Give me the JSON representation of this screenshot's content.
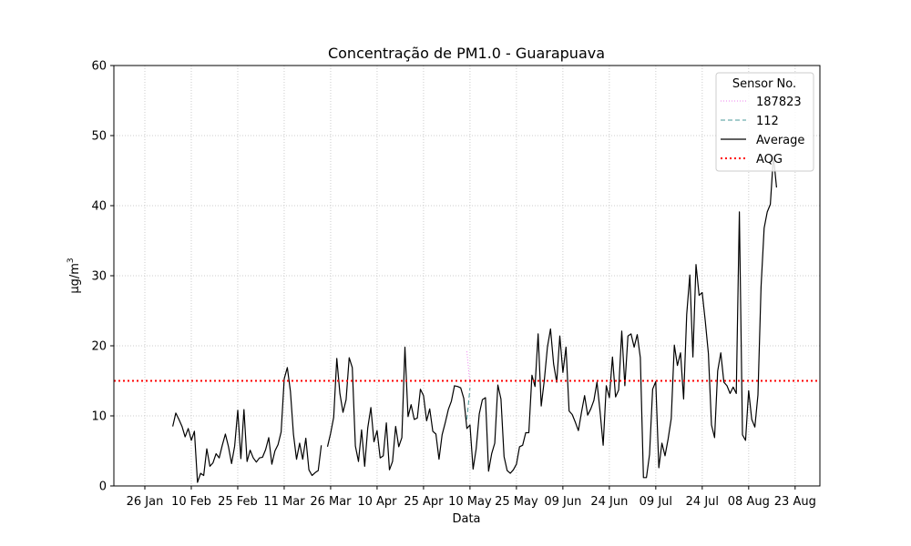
{
  "chart_data": {
    "type": "line",
    "title": "Concentração de PM1.0 - Guarapuava",
    "xlabel": "Data",
    "ylabel": "μg/m",
    "ylabel_sup": "3",
    "ylim": [
      0,
      60
    ],
    "yticks": [
      0,
      10,
      20,
      30,
      40,
      50,
      60
    ],
    "xlim": [
      "2024-01-16",
      "2024-08-31"
    ],
    "xticks": [
      {
        "date": "2024-01-26",
        "label": "26 Jan"
      },
      {
        "date": "2024-02-10",
        "label": "10 Feb"
      },
      {
        "date": "2024-02-25",
        "label": "25 Feb"
      },
      {
        "date": "2024-03-11",
        "label": "11 Mar"
      },
      {
        "date": "2024-03-26",
        "label": "26 Mar"
      },
      {
        "date": "2024-04-10",
        "label": "10 Apr"
      },
      {
        "date": "2024-04-25",
        "label": "25 Apr"
      },
      {
        "date": "2024-05-10",
        "label": "10 May"
      },
      {
        "date": "2024-05-25",
        "label": "25 May"
      },
      {
        "date": "2024-06-09",
        "label": "09 Jun"
      },
      {
        "date": "2024-06-24",
        "label": "24 Jun"
      },
      {
        "date": "2024-07-09",
        "label": "09 Jul"
      },
      {
        "date": "2024-07-24",
        "label": "24 Jul"
      },
      {
        "date": "2024-08-08",
        "label": "08 Aug"
      },
      {
        "date": "2024-08-23",
        "label": "23 Aug"
      }
    ],
    "grid": true,
    "legend": {
      "title": "Sensor No.",
      "position": "top-right"
    },
    "aqg": {
      "name": "AQG",
      "value": 15,
      "color": "#ff0000"
    },
    "series": [
      {
        "name": "187823",
        "color": "#ee82ee",
        "style": "dotted",
        "points": [
          [
            "2024-05-09",
            19.2
          ],
          [
            "2024-05-10",
            14.5
          ]
        ]
      },
      {
        "name": "112",
        "color": "#4a9a9a",
        "style": "dashed",
        "points": [
          [
            "2024-05-09",
            9.5
          ],
          [
            "2024-05-10",
            14.0
          ]
        ]
      },
      {
        "name": "Average",
        "color": "#000000",
        "style": "solid",
        "points": [
          [
            "2024-02-04",
            8.5
          ],
          [
            "2024-02-05",
            10.4
          ],
          [
            "2024-02-06",
            9.5
          ],
          [
            "2024-02-07",
            8.5
          ],
          [
            "2024-02-08",
            7.0
          ],
          [
            "2024-02-09",
            8.2
          ],
          [
            "2024-02-10",
            6.5
          ],
          [
            "2024-02-11",
            7.8
          ],
          [
            "2024-02-12",
            0.5
          ],
          [
            "2024-02-13",
            1.8
          ],
          [
            "2024-02-14",
            1.5
          ],
          [
            "2024-02-15",
            5.3
          ],
          [
            "2024-02-16",
            2.8
          ],
          [
            "2024-02-17",
            3.3
          ],
          [
            "2024-02-18",
            4.6
          ],
          [
            "2024-02-19",
            4.0
          ],
          [
            "2024-02-20",
            5.8
          ],
          [
            "2024-02-21",
            7.4
          ],
          [
            "2024-02-22",
            5.6
          ],
          [
            "2024-02-23",
            3.2
          ],
          [
            "2024-02-24",
            5.7
          ],
          [
            "2024-02-25",
            10.8
          ],
          [
            "2024-02-26",
            3.9
          ],
          [
            "2024-02-27",
            10.9
          ],
          [
            "2024-02-28",
            3.5
          ],
          [
            "2024-02-29",
            5.1
          ],
          [
            "2024-03-01",
            4.0
          ],
          [
            "2024-03-02",
            3.4
          ],
          [
            "2024-03-03",
            4.0
          ],
          [
            "2024-03-04",
            4.1
          ],
          [
            "2024-03-05",
            5.2
          ],
          [
            "2024-03-06",
            6.9
          ],
          [
            "2024-03-07",
            3.1
          ],
          [
            "2024-03-08",
            5.0
          ],
          [
            "2024-03-09",
            5.9
          ],
          [
            "2024-03-10",
            7.7
          ],
          [
            "2024-03-11",
            15.3
          ],
          [
            "2024-03-12",
            16.9
          ],
          [
            "2024-03-13",
            13.5
          ],
          [
            "2024-03-14",
            7.4
          ],
          [
            "2024-03-15",
            3.8
          ],
          [
            "2024-03-16",
            6.1
          ],
          [
            "2024-03-17",
            3.8
          ],
          [
            "2024-03-18",
            6.8
          ],
          [
            "2024-03-19",
            2.3
          ],
          [
            "2024-03-20",
            1.5
          ],
          [
            "2024-03-21",
            1.9
          ],
          [
            "2024-03-22",
            2.2
          ],
          [
            "2024-03-23",
            5.8
          ],
          null,
          [
            "2024-03-25",
            5.6
          ],
          [
            "2024-03-26",
            7.5
          ],
          [
            "2024-03-27",
            9.8
          ],
          [
            "2024-03-28",
            18.2
          ],
          [
            "2024-03-29",
            13.2
          ],
          [
            "2024-03-30",
            10.5
          ],
          [
            "2024-03-31",
            12.3
          ],
          [
            "2024-04-01",
            18.3
          ],
          [
            "2024-04-02",
            16.9
          ],
          [
            "2024-04-03",
            5.7
          ],
          [
            "2024-04-04",
            3.5
          ],
          [
            "2024-04-05",
            8.0
          ],
          [
            "2024-04-06",
            2.8
          ],
          [
            "2024-04-07",
            8.3
          ],
          [
            "2024-04-08",
            11.2
          ],
          [
            "2024-04-09",
            6.3
          ],
          [
            "2024-04-10",
            7.9
          ],
          [
            "2024-04-11",
            4.0
          ],
          [
            "2024-04-12",
            4.3
          ],
          [
            "2024-04-13",
            9.0
          ],
          [
            "2024-04-14",
            2.3
          ],
          [
            "2024-04-15",
            3.5
          ],
          [
            "2024-04-16",
            8.5
          ],
          [
            "2024-04-17",
            5.6
          ],
          [
            "2024-04-18",
            6.9
          ],
          [
            "2024-04-19",
            19.8
          ],
          [
            "2024-04-20",
            9.9
          ],
          [
            "2024-04-21",
            11.6
          ],
          [
            "2024-04-22",
            9.5
          ],
          [
            "2024-04-23",
            9.7
          ],
          [
            "2024-04-24",
            13.8
          ],
          [
            "2024-04-25",
            12.9
          ],
          [
            "2024-04-26",
            9.3
          ],
          [
            "2024-04-27",
            11.0
          ],
          [
            "2024-04-28",
            7.8
          ],
          [
            "2024-04-29",
            7.4
          ],
          [
            "2024-04-30",
            3.8
          ],
          [
            "2024-05-01",
            7.3
          ],
          [
            "2024-05-02",
            9.0
          ],
          [
            "2024-05-03",
            10.9
          ],
          [
            "2024-05-04",
            12.1
          ],
          [
            "2024-05-05",
            14.3
          ],
          [
            "2024-05-06",
            14.2
          ],
          [
            "2024-05-07",
            14.0
          ],
          [
            "2024-05-08",
            12.5
          ],
          [
            "2024-05-09",
            8.2
          ],
          [
            "2024-05-10",
            8.7
          ],
          [
            "2024-05-11",
            2.4
          ],
          [
            "2024-05-12",
            5.3
          ],
          [
            "2024-05-13",
            10.3
          ],
          [
            "2024-05-14",
            12.3
          ],
          [
            "2024-05-15",
            12.6
          ],
          [
            "2024-05-16",
            2.1
          ],
          [
            "2024-05-17",
            4.6
          ],
          [
            "2024-05-18",
            6.1
          ],
          [
            "2024-05-19",
            14.4
          ],
          [
            "2024-05-20",
            12.4
          ],
          [
            "2024-05-21",
            4.2
          ],
          [
            "2024-05-22",
            2.2
          ],
          [
            "2024-05-23",
            1.8
          ],
          [
            "2024-05-24",
            2.3
          ],
          [
            "2024-05-25",
            3.1
          ],
          [
            "2024-05-26",
            5.6
          ],
          [
            "2024-05-27",
            5.8
          ],
          [
            "2024-05-28",
            7.6
          ],
          [
            "2024-05-29",
            7.6
          ],
          [
            "2024-05-30",
            15.8
          ],
          [
            "2024-05-31",
            14.2
          ],
          [
            "2024-06-01",
            21.7
          ],
          [
            "2024-06-02",
            11.4
          ],
          [
            "2024-06-03",
            15.1
          ],
          [
            "2024-06-04",
            19.8
          ],
          [
            "2024-06-05",
            22.4
          ],
          [
            "2024-06-06",
            17.4
          ],
          [
            "2024-06-07",
            14.8
          ],
          [
            "2024-06-08",
            21.4
          ],
          [
            "2024-06-09",
            16.2
          ],
          [
            "2024-06-10",
            19.8
          ],
          [
            "2024-06-11",
            10.7
          ],
          [
            "2024-06-12",
            10.2
          ],
          [
            "2024-06-13",
            9.1
          ],
          [
            "2024-06-14",
            7.9
          ],
          [
            "2024-06-15",
            10.5
          ],
          [
            "2024-06-16",
            12.9
          ],
          [
            "2024-06-17",
            10.1
          ],
          [
            "2024-06-18",
            11.0
          ],
          [
            "2024-06-19",
            12.2
          ],
          [
            "2024-06-20",
            14.8
          ],
          [
            "2024-06-21",
            10.6
          ],
          [
            "2024-06-22",
            5.8
          ],
          [
            "2024-06-23",
            14.3
          ],
          [
            "2024-06-24",
            12.6
          ],
          [
            "2024-06-25",
            18.4
          ],
          [
            "2024-06-26",
            12.7
          ],
          [
            "2024-06-27",
            13.7
          ],
          [
            "2024-06-28",
            22.1
          ],
          [
            "2024-06-29",
            14.3
          ],
          [
            "2024-06-30",
            21.4
          ],
          [
            "2024-07-01",
            21.7
          ],
          [
            "2024-07-02",
            19.8
          ],
          [
            "2024-07-03",
            21.6
          ],
          [
            "2024-07-04",
            18.3
          ],
          [
            "2024-07-05",
            1.2
          ],
          [
            "2024-07-06",
            1.2
          ],
          [
            "2024-07-07",
            4.5
          ],
          [
            "2024-07-08",
            13.8
          ],
          [
            "2024-07-09",
            14.9
          ],
          [
            "2024-07-10",
            2.6
          ],
          [
            "2024-07-11",
            6.1
          ],
          [
            "2024-07-12",
            4.3
          ],
          [
            "2024-07-13",
            6.7
          ],
          [
            "2024-07-14",
            9.6
          ],
          [
            "2024-07-15",
            20.1
          ],
          [
            "2024-07-16",
            17.2
          ],
          [
            "2024-07-17",
            19.0
          ],
          [
            "2024-07-18",
            12.4
          ],
          [
            "2024-07-19",
            24.5
          ],
          [
            "2024-07-20",
            30.1
          ],
          [
            "2024-07-21",
            18.4
          ],
          [
            "2024-07-22",
            31.6
          ],
          [
            "2024-07-23",
            27.2
          ],
          [
            "2024-07-24",
            27.6
          ],
          [
            "2024-07-25",
            23.5
          ],
          [
            "2024-07-26",
            18.9
          ],
          [
            "2024-07-27",
            8.7
          ],
          [
            "2024-07-28",
            6.9
          ],
          [
            "2024-07-29",
            16.4
          ],
          [
            "2024-07-30",
            19.0
          ],
          [
            "2024-07-31",
            14.8
          ],
          [
            "2024-08-01",
            14.3
          ],
          [
            "2024-08-02",
            13.2
          ],
          [
            "2024-08-03",
            14.1
          ],
          [
            "2024-08-04",
            13.2
          ],
          [
            "2024-08-05",
            39.1
          ],
          [
            "2024-08-06",
            7.3
          ],
          [
            "2024-08-07",
            6.5
          ],
          [
            "2024-08-08",
            13.6
          ],
          [
            "2024-08-09",
            9.5
          ],
          [
            "2024-08-10",
            8.4
          ],
          [
            "2024-08-11",
            13.0
          ],
          [
            "2024-08-12",
            28.4
          ],
          [
            "2024-08-13",
            36.8
          ],
          [
            "2024-08-14",
            39.1
          ],
          [
            "2024-08-15",
            40.2
          ],
          [
            "2024-08-16",
            47.1
          ],
          [
            "2024-08-17",
            42.6
          ]
        ]
      }
    ]
  }
}
